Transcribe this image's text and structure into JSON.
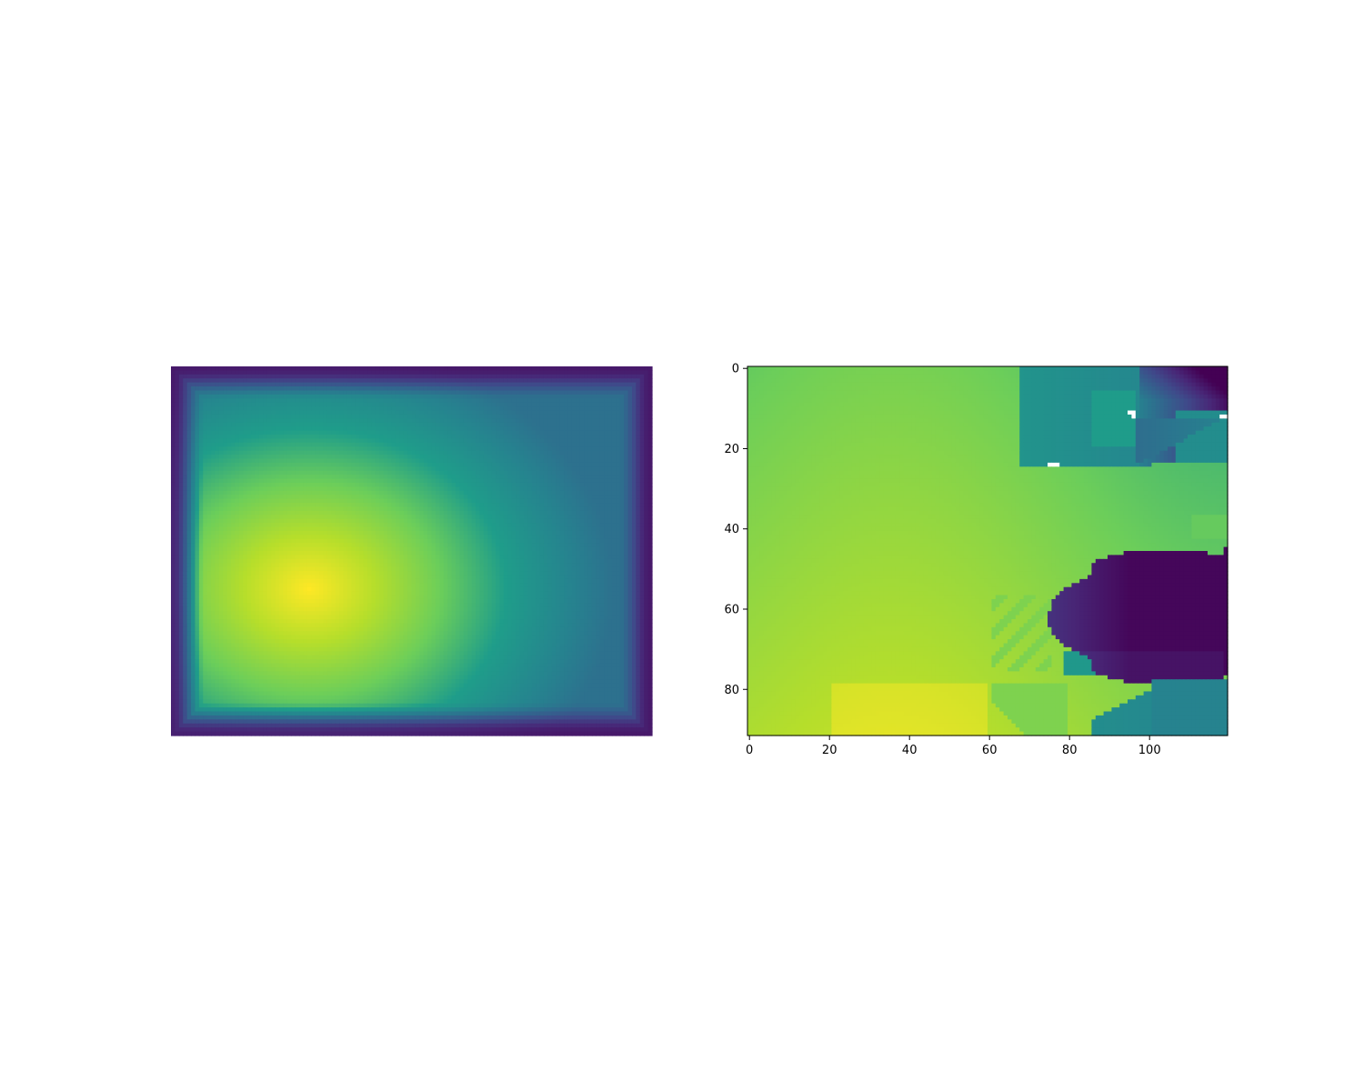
{
  "figure": {
    "background": "#ffffff"
  },
  "colormap": {
    "name": "viridis",
    "stops": [
      "#440154",
      "#482777",
      "#3f4a8a",
      "#31678e",
      "#26838f",
      "#1f9d8a",
      "#6cce5a",
      "#b6de2b",
      "#fee825"
    ]
  },
  "chart_data": [
    {
      "type": "heatmap",
      "title": "",
      "xlabel": "",
      "ylabel": "",
      "axes_visible": false,
      "grid": false,
      "description_values": {
        "shape": [
          92,
          120
        ],
        "peak_cell": [
          35,
          57
        ],
        "peak_value": 1.0,
        "edge_value": 0.0
      }
    },
    {
      "type": "heatmap",
      "title": "",
      "xlabel": "",
      "ylabel": "",
      "axes_visible": true,
      "grid": false,
      "shape": [
        92,
        120
      ],
      "xlim": [
        -0.5,
        119.5
      ],
      "ylim": [
        91.5,
        -0.5
      ],
      "xticks": [
        0,
        20,
        40,
        60,
        80,
        100
      ],
      "yticks": [
        0,
        20,
        40,
        60,
        80
      ],
      "missing_cells": [
        [
          11,
          95
        ],
        [
          11,
          96
        ],
        [
          12,
          96
        ],
        [
          12,
          118
        ],
        [
          12,
          119
        ],
        [
          24,
          75
        ],
        [
          24,
          76
        ],
        [
          24,
          77
        ]
      ]
    }
  ]
}
